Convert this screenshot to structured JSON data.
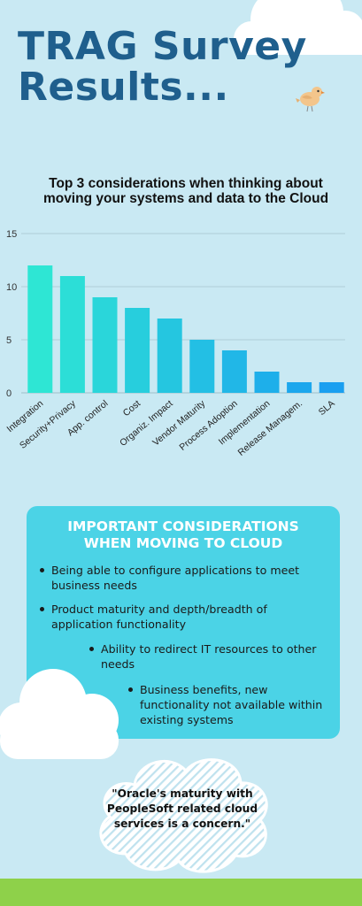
{
  "header": {
    "title_line1": "TRAG Survey",
    "title_line2": "Results..."
  },
  "chart_data": {
    "type": "bar",
    "title_line1": "Top 3 considerations when thinking about",
    "title_line2": "moving your systems and data to the Cloud",
    "categories": [
      "Integration",
      "Security+Privacy",
      "App. control",
      "Cost",
      "Organiz. Impact",
      "Vendor Maturity",
      "Process Adoption",
      "Implementation",
      "Release Managem.",
      "SLA"
    ],
    "values": [
      12,
      11,
      9,
      8,
      7,
      5,
      4,
      2,
      1,
      1
    ],
    "ylim": [
      0,
      15
    ],
    "yticks": [
      0,
      5,
      10,
      15
    ],
    "grid": true,
    "colors": {
      "start": "#2ee6d4",
      "end": "#1a9ff0"
    }
  },
  "panel": {
    "title_line1": "IMPORTANT CONSIDERATIONS",
    "title_line2": "WHEN MOVING TO CLOUD",
    "bullets": [
      "Being able to configure applications to meet business needs",
      "Product maturity and depth/breadth of application functionality",
      "Ability to redirect IT resources to other needs",
      "Business benefits, new functionality not available within existing systems"
    ],
    "color": "#4bd3e6"
  },
  "quote": {
    "line1": "\"Oracle's maturity with",
    "line2": "PeopleSoft related cloud",
    "line3": "services is a concern.\""
  },
  "colors": {
    "background": "#c9e9f3",
    "title": "#1f5f8d",
    "ground": "#8ed14a"
  },
  "icons": {
    "bird": "bird-icon",
    "cloud": "cloud-icon"
  }
}
